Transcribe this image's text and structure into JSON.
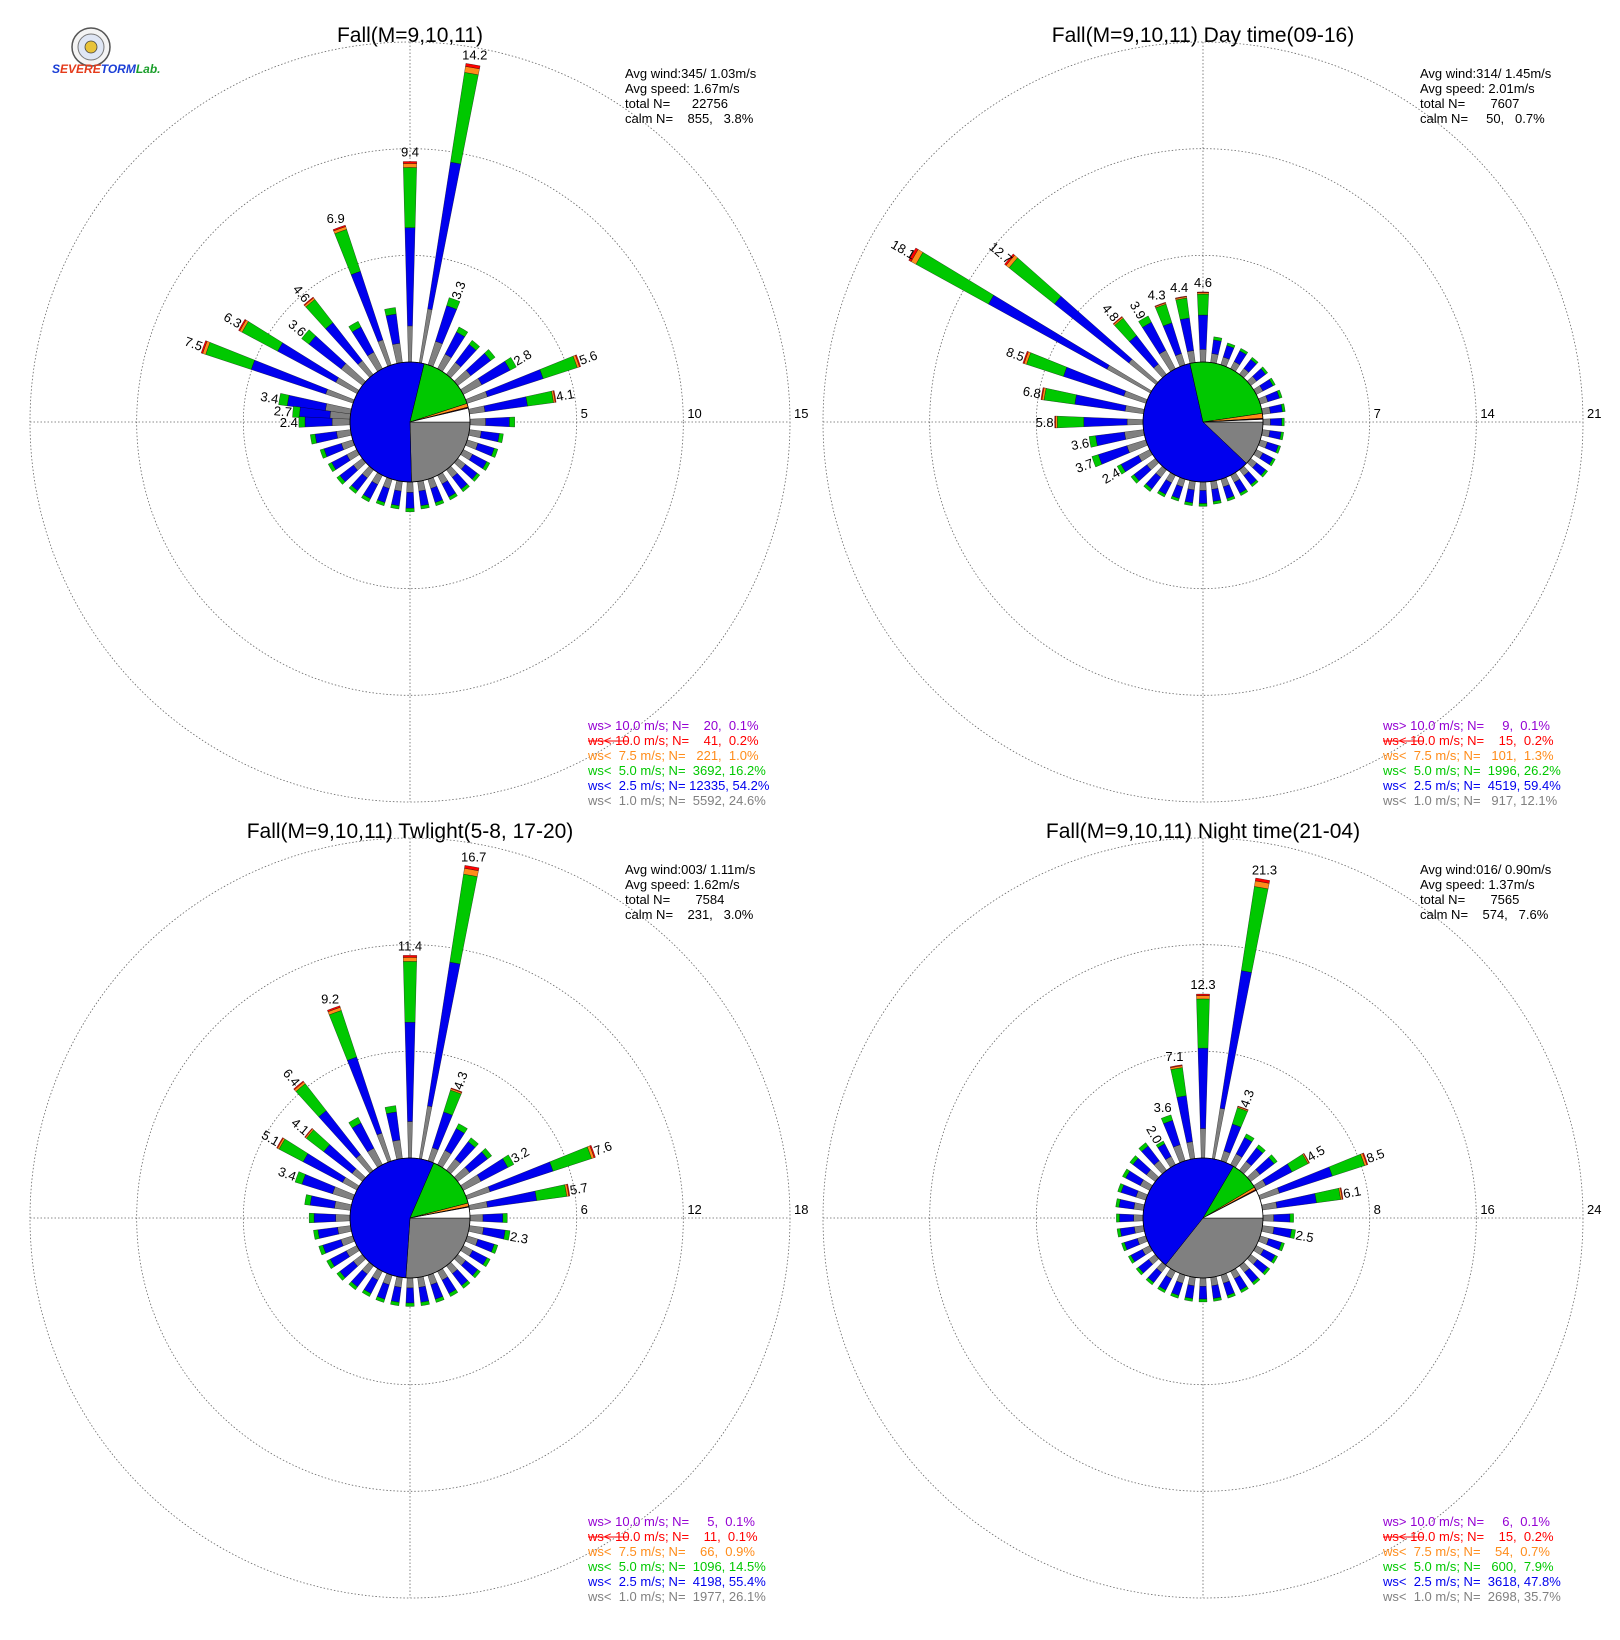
{
  "logo": {
    "text_a": "S",
    "text_b": "EVERE",
    "text_c": "TORM",
    "text_d": "Lab."
  },
  "colors": {
    "cat0": "#808080",
    "cat1": "#0000ee",
    "cat2": "#00c800",
    "cat3": "#ff8c1a",
    "cat4": "#ff0000",
    "cat5": "#9400d3",
    "grid": "#666666",
    "wedge_light": "#ffffff"
  },
  "chart_data": [
    {
      "type": "wind-rose",
      "title": "Fall(M=9,10,11)",
      "rings": [
        5,
        10,
        15
      ],
      "stats": [
        "Avg wind:345/ 1.03m/s",
        "Avg speed: 1.67m/s",
        "total N=      22756",
        "calm N=    855,   3.8%"
      ],
      "legend": [
        "ws> 10.0 m/s; N=    20,  0.1%",
        "ws< 10.0 m/s; N=    41,  0.2%",
        "ws<  7.5 m/s; N=   221,  1.0%",
        "ws<  5.0 m/s; N=  3692, 16.2%",
        "ws<  2.5 m/s; N= 12335, 54.2%",
        "ws<  1.0 m/s; N=  5592, 24.6%"
      ],
      "pie": [
        24.6,
        54.2,
        16.2,
        1.0,
        0.2,
        0.1
      ],
      "directions": [
        {
          "dir": 10,
          "total": 14.2,
          "label": "14.2"
        },
        {
          "dir": 0,
          "total": 9.4,
          "label": "9.4"
        },
        {
          "dir": 340,
          "total": 6.9,
          "label": "6.9"
        },
        {
          "dir": 320,
          "total": 4.6,
          "label": "4.6"
        },
        {
          "dir": 310,
          "total": 3.6,
          "label": "3.6"
        },
        {
          "dir": 300,
          "total": 6.3,
          "label": "6.3"
        },
        {
          "dir": 290,
          "total": 7.5,
          "label": "7.5"
        },
        {
          "dir": 280,
          "total": 3.4,
          "label": "3.4"
        },
        {
          "dir": 275,
          "total": 2.7,
          "label": "2.7"
        },
        {
          "dir": 270,
          "total": 2.4,
          "label": "2.4"
        },
        {
          "dir": 20,
          "total": 3.3,
          "label": "3.3"
        },
        {
          "dir": 60,
          "total": 2.8,
          "label": "2.8"
        },
        {
          "dir": 70,
          "total": 5.6,
          "label": "5.6"
        },
        {
          "dir": 80,
          "total": 4.1,
          "label": "4.1"
        },
        {
          "dir": 30,
          "total": 2.2,
          "label": ""
        },
        {
          "dir": 40,
          "total": 2.0,
          "label": ""
        },
        {
          "dir": 50,
          "total": 2.2,
          "label": ""
        },
        {
          "dir": 90,
          "total": 2.1,
          "label": ""
        },
        {
          "dir": 100,
          "total": 1.6,
          "label": ""
        },
        {
          "dir": 110,
          "total": 1.5,
          "label": ""
        },
        {
          "dir": 120,
          "total": 1.4,
          "label": ""
        },
        {
          "dir": 130,
          "total": 1.3,
          "label": ""
        },
        {
          "dir": 140,
          "total": 1.3,
          "label": ""
        },
        {
          "dir": 150,
          "total": 1.3,
          "label": ""
        },
        {
          "dir": 160,
          "total": 1.3,
          "label": ""
        },
        {
          "dir": 170,
          "total": 1.3,
          "label": ""
        },
        {
          "dir": 180,
          "total": 1.4,
          "label": ""
        },
        {
          "dir": 190,
          "total": 1.3,
          "label": ""
        },
        {
          "dir": 200,
          "total": 1.3,
          "label": ""
        },
        {
          "dir": 210,
          "total": 1.4,
          "label": ""
        },
        {
          "dir": 220,
          "total": 1.4,
          "label": ""
        },
        {
          "dir": 230,
          "total": 1.5,
          "label": ""
        },
        {
          "dir": 240,
          "total": 1.5,
          "label": ""
        },
        {
          "dir": 250,
          "total": 1.6,
          "label": ""
        },
        {
          "dir": 260,
          "total": 1.9,
          "label": ""
        },
        {
          "dir": 330,
          "total": 2.5,
          "label": ""
        },
        {
          "dir": 350,
          "total": 2.6,
          "label": ""
        }
      ]
    },
    {
      "type": "wind-rose",
      "title": "Fall(M=9,10,11) Day time(09-16)",
      "rings": [
        7,
        14,
        21
      ],
      "stats": [
        "Avg wind:314/ 1.45m/s",
        "Avg speed: 2.01m/s",
        "total N=       7607",
        "calm N=     50,   0.7%"
      ],
      "legend": [
        "ws> 10.0 m/s; N=     9,  0.1%",
        "ws< 10.0 m/s; N=    15,  0.2%",
        "ws<  7.5 m/s; N=   101,  1.3%",
        "ws<  5.0 m/s; N=  1996, 26.2%",
        "ws<  2.5 m/s; N=  4519, 59.4%",
        "ws<  1.0 m/s; N=   917, 12.1%"
      ],
      "pie": [
        12.1,
        59.4,
        26.2,
        1.3,
        0.2,
        0.1
      ],
      "directions": [
        {
          "dir": 300,
          "total": 18.1,
          "label": "18.1"
        },
        {
          "dir": 310,
          "total": 12.7,
          "label": "12.7"
        },
        {
          "dir": 320,
          "total": 4.8,
          "label": "4.8"
        },
        {
          "dir": 330,
          "total": 3.9,
          "label": "3.9"
        },
        {
          "dir": 340,
          "total": 4.3,
          "label": "4.3"
        },
        {
          "dir": 350,
          "total": 4.4,
          "label": "4.4"
        },
        {
          "dir": 0,
          "total": 4.6,
          "label": "4.6"
        },
        {
          "dir": 290,
          "total": 8.5,
          "label": "8.5"
        },
        {
          "dir": 280,
          "total": 6.8,
          "label": "6.8"
        },
        {
          "dir": 270,
          "total": 5.8,
          "label": "5.8"
        },
        {
          "dir": 260,
          "total": 3.6,
          "label": "3.6"
        },
        {
          "dir": 250,
          "total": 3.7,
          "label": "3.7"
        },
        {
          "dir": 240,
          "total": 2.4,
          "label": "2.4"
        },
        {
          "dir": 10,
          "total": 1.7,
          "label": ""
        },
        {
          "dir": 20,
          "total": 1.5,
          "label": ""
        },
        {
          "dir": 30,
          "total": 1.5,
          "label": ""
        },
        {
          "dir": 40,
          "total": 1.4,
          "label": ""
        },
        {
          "dir": 50,
          "total": 1.4,
          "label": ""
        },
        {
          "dir": 60,
          "total": 1.4,
          "label": ""
        },
        {
          "dir": 70,
          "total": 1.5,
          "label": ""
        },
        {
          "dir": 80,
          "total": 1.5,
          "label": ""
        },
        {
          "dir": 90,
          "total": 1.4,
          "label": ""
        },
        {
          "dir": 100,
          "total": 1.4,
          "label": ""
        },
        {
          "dir": 110,
          "total": 1.4,
          "label": ""
        },
        {
          "dir": 120,
          "total": 1.4,
          "label": ""
        },
        {
          "dir": 130,
          "total": 1.4,
          "label": ""
        },
        {
          "dir": 140,
          "total": 1.4,
          "label": ""
        },
        {
          "dir": 150,
          "total": 1.5,
          "label": ""
        },
        {
          "dir": 160,
          "total": 1.5,
          "label": ""
        },
        {
          "dir": 170,
          "total": 1.5,
          "label": ""
        },
        {
          "dir": 180,
          "total": 1.6,
          "label": ""
        },
        {
          "dir": 190,
          "total": 1.6,
          "label": ""
        },
        {
          "dir": 200,
          "total": 1.5,
          "label": ""
        },
        {
          "dir": 210,
          "total": 1.6,
          "label": ""
        },
        {
          "dir": 220,
          "total": 1.8,
          "label": ""
        },
        {
          "dir": 230,
          "total": 2.0,
          "label": ""
        }
      ]
    },
    {
      "type": "wind-rose",
      "title": "Fall(M=9,10,11) Twlight(5-8, 17-20)",
      "rings": [
        6,
        12,
        18
      ],
      "stats": [
        "Avg wind:003/ 1.11m/s",
        "Avg speed: 1.62m/s",
        "total N=       7584",
        "calm N=    231,   3.0%"
      ],
      "legend": [
        "ws> 10.0 m/s; N=     5,  0.1%",
        "ws< 10.0 m/s; N=    11,  0.1%",
        "ws<  7.5 m/s; N=    66,  0.9%",
        "ws<  5.0 m/s; N=  1096, 14.5%",
        "ws<  2.5 m/s; N=  4198, 55.4%",
        "ws<  1.0 m/s; N=  1977, 26.1%"
      ],
      "pie": [
        26.1,
        55.4,
        14.5,
        0.9,
        0.1,
        0.1
      ],
      "directions": [
        {
          "dir": 10,
          "total": 16.7,
          "label": "16.7"
        },
        {
          "dir": 0,
          "total": 11.4,
          "label": "11.4"
        },
        {
          "dir": 340,
          "total": 9.2,
          "label": "9.2"
        },
        {
          "dir": 320,
          "total": 6.4,
          "label": "6.4"
        },
        {
          "dir": 310,
          "total": 4.1,
          "label": "4.1"
        },
        {
          "dir": 300,
          "total": 5.1,
          "label": "5.1"
        },
        {
          "dir": 290,
          "total": 3.4,
          "label": "3.4"
        },
        {
          "dir": 20,
          "total": 4.3,
          "label": "4.3"
        },
        {
          "dir": 60,
          "total": 3.2,
          "label": "3.2"
        },
        {
          "dir": 70,
          "total": 7.6,
          "label": "7.6"
        },
        {
          "dir": 80,
          "total": 5.7,
          "label": "5.7"
        },
        {
          "dir": 100,
          "total": 2.3,
          "label": "2.3"
        },
        {
          "dir": 30,
          "total": 2.6,
          "label": ""
        },
        {
          "dir": 40,
          "total": 2.3,
          "label": ""
        },
        {
          "dir": 50,
          "total": 2.4,
          "label": ""
        },
        {
          "dir": 90,
          "total": 2.1,
          "label": ""
        },
        {
          "dir": 110,
          "total": 1.8,
          "label": ""
        },
        {
          "dir": 120,
          "total": 1.7,
          "label": ""
        },
        {
          "dir": 130,
          "total": 1.6,
          "label": ""
        },
        {
          "dir": 140,
          "total": 1.6,
          "label": ""
        },
        {
          "dir": 150,
          "total": 1.6,
          "label": ""
        },
        {
          "dir": 160,
          "total": 1.6,
          "label": ""
        },
        {
          "dir": 170,
          "total": 1.6,
          "label": ""
        },
        {
          "dir": 180,
          "total": 1.6,
          "label": ""
        },
        {
          "dir": 190,
          "total": 1.6,
          "label": ""
        },
        {
          "dir": 200,
          "total": 1.6,
          "label": ""
        },
        {
          "dir": 210,
          "total": 1.6,
          "label": ""
        },
        {
          "dir": 220,
          "total": 1.7,
          "label": ""
        },
        {
          "dir": 230,
          "total": 1.8,
          "label": ""
        },
        {
          "dir": 240,
          "total": 1.9,
          "label": ""
        },
        {
          "dir": 250,
          "total": 2.0,
          "label": ""
        },
        {
          "dir": 260,
          "total": 2.1,
          "label": ""
        },
        {
          "dir": 270,
          "total": 2.3,
          "label": ""
        },
        {
          "dir": 280,
          "total": 2.6,
          "label": ""
        },
        {
          "dir": 330,
          "total": 3.0,
          "label": ""
        },
        {
          "dir": 350,
          "total": 3.0,
          "label": ""
        }
      ]
    },
    {
      "type": "wind-rose",
      "title": "Fall(M=9,10,11) Night time(21-04)",
      "rings": [
        8,
        16,
        24
      ],
      "stats": [
        "Avg wind:016/ 0.90m/s",
        "Avg speed: 1.37m/s",
        "total N=       7565",
        "calm N=    574,   7.6%"
      ],
      "legend": [
        "ws> 10.0 m/s; N=     6,  0.1%",
        "ws< 10.0 m/s; N=    15,  0.2%",
        "ws<  7.5 m/s; N=    54,  0.7%",
        "ws<  5.0 m/s; N=   600,  7.9%",
        "ws<  2.5 m/s; N=  3618, 47.8%",
        "ws<  1.0 m/s; N=  2698, 35.7%"
      ],
      "pie": [
        35.7,
        47.8,
        7.9,
        0.7,
        0.2,
        0.1
      ],
      "directions": [
        {
          "dir": 10,
          "total": 21.3,
          "label": "21.3"
        },
        {
          "dir": 0,
          "total": 12.3,
          "label": "12.3"
        },
        {
          "dir": 350,
          "total": 7.1,
          "label": "7.1"
        },
        {
          "dir": 340,
          "total": 3.6,
          "label": "3.6"
        },
        {
          "dir": 330,
          "total": 2.0,
          "label": "2.0"
        },
        {
          "dir": 20,
          "total": 4.3,
          "label": "4.3"
        },
        {
          "dir": 60,
          "total": 4.5,
          "label": "4.5"
        },
        {
          "dir": 70,
          "total": 8.5,
          "label": "8.5"
        },
        {
          "dir": 80,
          "total": 6.1,
          "label": "6.1"
        },
        {
          "dir": 100,
          "total": 2.5,
          "label": "2.5"
        },
        {
          "dir": 30,
          "total": 2.6,
          "label": ""
        },
        {
          "dir": 40,
          "total": 2.4,
          "label": ""
        },
        {
          "dir": 50,
          "total": 2.5,
          "label": ""
        },
        {
          "dir": 90,
          "total": 2.3,
          "label": ""
        },
        {
          "dir": 110,
          "total": 1.9,
          "label": ""
        },
        {
          "dir": 120,
          "total": 1.8,
          "label": ""
        },
        {
          "dir": 130,
          "total": 1.8,
          "label": ""
        },
        {
          "dir": 140,
          "total": 1.8,
          "label": ""
        },
        {
          "dir": 150,
          "total": 1.8,
          "label": ""
        },
        {
          "dir": 160,
          "total": 1.8,
          "label": ""
        },
        {
          "dir": 170,
          "total": 1.8,
          "label": ""
        },
        {
          "dir": 180,
          "total": 1.8,
          "label": ""
        },
        {
          "dir": 190,
          "total": 1.8,
          "label": ""
        },
        {
          "dir": 200,
          "total": 1.8,
          "label": ""
        },
        {
          "dir": 210,
          "total": 1.8,
          "label": ""
        },
        {
          "dir": 220,
          "total": 1.8,
          "label": ""
        },
        {
          "dir": 230,
          "total": 1.8,
          "label": ""
        },
        {
          "dir": 240,
          "total": 1.8,
          "label": ""
        },
        {
          "dir": 250,
          "total": 1.9,
          "label": ""
        },
        {
          "dir": 260,
          "total": 2.0,
          "label": ""
        },
        {
          "dir": 270,
          "total": 2.0,
          "label": ""
        },
        {
          "dir": 280,
          "total": 2.1,
          "label": ""
        },
        {
          "dir": 290,
          "total": 2.2,
          "label": ""
        },
        {
          "dir": 300,
          "total": 2.3,
          "label": ""
        },
        {
          "dir": 310,
          "total": 2.4,
          "label": ""
        },
        {
          "dir": 320,
          "total": 2.6,
          "label": ""
        }
      ]
    }
  ]
}
